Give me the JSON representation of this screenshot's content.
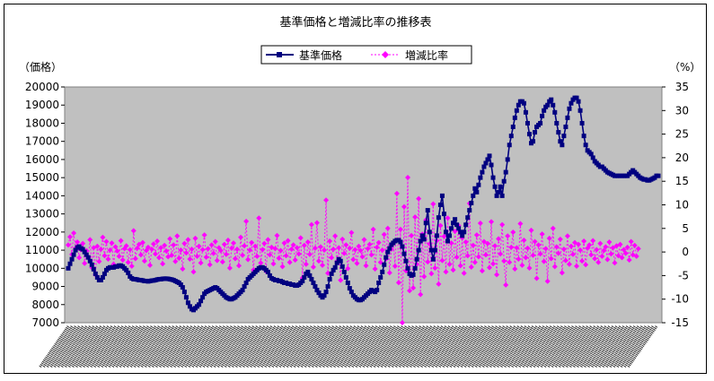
{
  "chart_data": {
    "type": "line",
    "title": "基準価格と増減比率の推移表",
    "y_left_label": "（価格）",
    "y_right_label": "（%）",
    "y_left_lim": [
      7000,
      20000
    ],
    "y_left_ticks": [
      7000,
      8000,
      9000,
      10000,
      11000,
      12000,
      13000,
      14000,
      15000,
      16000,
      17000,
      18000,
      19000,
      20000
    ],
    "y_right_lim": [
      -15,
      35
    ],
    "y_right_ticks": [
      -15,
      -10,
      -5,
      0,
      5,
      10,
      15,
      20,
      25,
      30,
      35
    ],
    "background": "#c0c0c0",
    "grid": false,
    "legend_position": "top",
    "series": [
      {
        "name": "基準価格",
        "axis": "left",
        "color": "#000080",
        "marker": "square",
        "line": "solid",
        "values": [
          10000,
          10250,
          10500,
          10750,
          11000,
          11150,
          11200,
          11100,
          11050,
          10900,
          10750,
          10600,
          10400,
          10200,
          9950,
          9700,
          9500,
          9350,
          9350,
          9500,
          9700,
          9900,
          10000,
          10050,
          10050,
          10050,
          10100,
          10100,
          10150,
          10150,
          10100,
          10000,
          9900,
          9750,
          9550,
          9450,
          9400,
          9400,
          9380,
          9350,
          9350,
          9330,
          9300,
          9300,
          9280,
          9300,
          9320,
          9330,
          9350,
          9380,
          9400,
          9400,
          9420,
          9430,
          9430,
          9420,
          9400,
          9380,
          9350,
          9300,
          9250,
          9200,
          9100,
          8950,
          8700,
          8400,
          8100,
          7900,
          7750,
          7700,
          7800,
          7900,
          8000,
          8200,
          8400,
          8600,
          8700,
          8750,
          8800,
          8850,
          8900,
          8950,
          8900,
          8800,
          8700,
          8600,
          8500,
          8400,
          8350,
          8300,
          8300,
          8350,
          8400,
          8500,
          8600,
          8700,
          8800,
          9000,
          9200,
          9400,
          9500,
          9600,
          9700,
          9800,
          9900,
          10000,
          10050,
          10050,
          10000,
          9900,
          9800,
          9600,
          9450,
          9400,
          9350,
          9350,
          9300,
          9300,
          9250,
          9200,
          9200,
          9150,
          9150,
          9100,
          9100,
          9050,
          9050,
          9100,
          9200,
          9300,
          9500,
          9700,
          9800,
          9600,
          9400,
          9200,
          9000,
          8800,
          8650,
          8500,
          8400,
          8500,
          8700,
          9000,
          9400,
          9700,
          9900,
          10050,
          10300,
          10500,
          10400,
          10100,
          9800,
          9500,
          9200,
          8900,
          8700,
          8500,
          8400,
          8300,
          8250,
          8250,
          8300,
          8400,
          8500,
          8600,
          8700,
          8800,
          8750,
          8700,
          8800,
          9200,
          9500,
          9800,
          10200,
          10600,
          10900,
          11100,
          11300,
          11400,
          11500,
          11550,
          11550,
          11450,
          11200,
          10800,
          10400,
          10000,
          9700,
          9600,
          9650,
          10000,
          10500,
          11000,
          11500,
          11800,
          11600,
          12500,
          13200,
          12000,
          11000,
          10500,
          11000,
          11800,
          12800,
          13500,
          14000,
          13000,
          12000,
          11500,
          11800,
          12200,
          12500,
          12700,
          12400,
          12200,
          12000,
          11800,
          12000,
          12400,
          12800,
          13200,
          13600,
          14000,
          14400,
          14200,
          14600,
          15000,
          15300,
          15600,
          15800,
          16000,
          16200,
          15700,
          15000,
          14500,
          14000,
          14200,
          14500,
          14000,
          14800,
          15300,
          16000,
          16800,
          17300,
          17800,
          18300,
          18700,
          19000,
          19200,
          19200,
          19100,
          18600,
          18000,
          17400,
          16900,
          17000,
          17500,
          17800,
          17900,
          18000,
          18400,
          18700,
          18900,
          19000,
          19200,
          19300,
          19000,
          18600,
          18000,
          17500,
          17000,
          16800,
          17300,
          17800,
          18300,
          18800,
          19100,
          19300,
          19400,
          19400,
          19200,
          18700,
          18000,
          17300,
          16800,
          16500,
          16400,
          16300,
          16100,
          15900,
          15800,
          15700,
          15600,
          15600,
          15500,
          15400,
          15300,
          15250,
          15200,
          15150,
          15100,
          15100,
          15100,
          15100,
          15100,
          15100,
          15100,
          15100,
          15200,
          15300,
          15400,
          15300,
          15200,
          15100,
          15000,
          14950,
          14900,
          14900,
          14850,
          14850,
          14900,
          14950,
          15000,
          15100,
          15100
        ]
      },
      {
        "name": "増減比率",
        "axis": "right",
        "color": "#ff00ff",
        "marker": "diamond",
        "line": "dotted",
        "values": [
          1.5,
          3.2,
          -0.5,
          4.0,
          0.8,
          2.1,
          -1.2,
          0.5,
          1.8,
          -2.4,
          0.3,
          -1.1,
          2.6,
          -3.3,
          0.9,
          -4.8,
          1.2,
          -2.0,
          0.6,
          3.1,
          -0.8,
          2.2,
          -1.5,
          0.4,
          1.9,
          -2.6,
          1.1,
          0.2,
          -0.9,
          2.4,
          -1.7,
          0.7,
          1.3,
          -2.2,
          0.5,
          -3.0,
          4.5,
          -1.4,
          0.8,
          1.6,
          -0.6,
          2.0,
          -1.9,
          0.3,
          1.0,
          -2.8,
          0.6,
          1.7,
          -0.4,
          2.3,
          -1.2,
          0.9,
          -2.5,
          1.4,
          0.2,
          -1.0,
          2.8,
          -0.7,
          1.5,
          -2.0,
          3.4,
          -1.3,
          0.4,
          -3.6,
          1.8,
          -0.2,
          2.6,
          -1.5,
          0.6,
          -4.2,
          2.9,
          -0.9,
          1.2,
          -2.3,
          0.5,
          3.6,
          -1.1,
          0.7,
          -2.7,
          1.5,
          -0.3,
          2.2,
          -1.8,
          0.9,
          0.3,
          -2.1,
          1.6,
          -0.5,
          2.5,
          -3.4,
          0.8,
          1.9,
          -1.4,
          0.6,
          -2.9,
          3.1,
          -0.7,
          1.3,
          6.5,
          -1.6,
          0.4,
          2.0,
          -3.8,
          1.2,
          -0.9,
          7.2,
          -2.3,
          0.5,
          1.8,
          -4.1,
          2.6,
          -0.6,
          1.0,
          -2.5,
          0.7,
          3.5,
          -1.3,
          0.3,
          -3.1,
          1.9,
          -0.8,
          2.4,
          -2.2,
          0.6,
          1.5,
          -1.7,
          0.9,
          -0.4,
          3.0,
          -5.5,
          1.4,
          -2.6,
          2.1,
          -0.5,
          5.8,
          -3.2,
          0.8,
          6.2,
          -1.9,
          1.1,
          -2.8,
          0.4,
          11.0,
          -4.5,
          2.3,
          -1.2,
          0.6,
          3.4,
          -2.0,
          0.9,
          -6.0,
          2.7,
          -0.3,
          1.5,
          -3.5,
          0.8,
          4.1,
          -1.6,
          0.5,
          -2.4,
          1.2,
          0.3,
          -1.0,
          2.6,
          -2.9,
          0.7,
          1.6,
          -0.6,
          4.8,
          -3.6,
          1.0,
          2.0,
          -2.2,
          0.4,
          3.7,
          -1.5,
          5.0,
          -4.4,
          0.6,
          1.8,
          -3.0,
          12.4,
          -6.5,
          4.8,
          -15.0,
          9.6,
          -4.0,
          15.8,
          -8.2,
          3.5,
          -7.6,
          7.4,
          -2.6,
          11.3,
          -9.0,
          3.8,
          -5.2,
          6.8,
          -2.1,
          1.7,
          -4.6,
          10.2,
          -3.4,
          2.4,
          -6.8,
          5.6,
          -1.8,
          3.3,
          -4.2,
          7.2,
          -2.6,
          1.9,
          -3.8,
          4.4,
          -1.1,
          5.6,
          -2.9,
          3.0,
          -4.5,
          2.1,
          -0.8,
          10.3,
          -3.2,
          1.4,
          -2.2,
          3.6,
          -1.0,
          6.1,
          -4.0,
          2.2,
          -0.6,
          1.8,
          -3.3,
          6.4,
          -2.5,
          1.3,
          -4.8,
          2.8,
          -0.4,
          5.8,
          -1.9,
          -7.0,
          3.4,
          -2.2,
          1.0,
          4.2,
          -3.6,
          0.9,
          -1.5,
          6.0,
          -2.8,
          2.5,
          -1.2,
          0.8,
          -3.4,
          4.6,
          -0.7,
          2.2,
          -5.6,
          1.5,
          -0.4,
          3.8,
          -2.0,
          0.7,
          -6.2,
          2.9,
          -1.4,
          5.0,
          -3.1,
          1.1,
          -0.3,
          2.7,
          -4.4,
          0.6,
          -1.8,
          3.4,
          -2.6,
          1.2,
          -0.5,
          2.0,
          -3.0,
          1.6,
          0.4,
          -1.9,
          2.3,
          -2.7,
          0.8,
          1.5,
          -0.6,
          2.4,
          -1.4,
          0.5,
          -2.2,
          1.8,
          -0.9,
          0.3,
          1.1,
          -1.6,
          2.1,
          -0.4,
          0.9,
          -2.3,
          1.3,
          -0.8,
          1.6,
          -1.2,
          0.5,
          -0.3,
          1.0,
          -1.7,
          2.2,
          -0.6,
          1.4,
          -0.9,
          0.7
        ]
      }
    ]
  }
}
